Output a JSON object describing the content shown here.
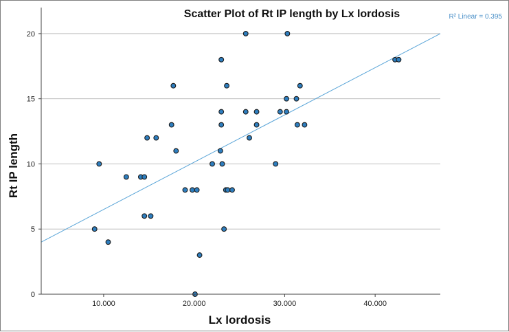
{
  "chart_data": {
    "type": "scatter",
    "title": "Scatter Plot of Rt IP length by Lx lordosis",
    "xlabel": "Lx lordosis",
    "ylabel": "Rt IP length",
    "xlim": [
      3.1,
      47.2
    ],
    "ylim": [
      0,
      22
    ],
    "x_ticks": [
      10,
      20,
      30,
      40
    ],
    "x_tick_labels": [
      "10.000",
      "20.000",
      "30.000",
      "40.000"
    ],
    "y_ticks": [
      0,
      5,
      10,
      15,
      20
    ],
    "y_tick_labels": [
      "0",
      "5",
      "10",
      "15",
      "20"
    ],
    "grid": "horizontal",
    "fit_line": {
      "label": "R² Linear = 0.395",
      "x": [
        3.1,
        47.2
      ],
      "y": [
        4.0,
        20.0
      ]
    },
    "points": [
      {
        "x": 25.7,
        "y": 20
      },
      {
        "x": 30.3,
        "y": 20
      },
      {
        "x": 23.0,
        "y": 18
      },
      {
        "x": 42.2,
        "y": 18
      },
      {
        "x": 42.6,
        "y": 18
      },
      {
        "x": 17.7,
        "y": 16
      },
      {
        "x": 23.6,
        "y": 16
      },
      {
        "x": 31.7,
        "y": 16
      },
      {
        "x": 30.2,
        "y": 15
      },
      {
        "x": 31.3,
        "y": 15
      },
      {
        "x": 23.0,
        "y": 14
      },
      {
        "x": 25.7,
        "y": 14
      },
      {
        "x": 26.9,
        "y": 14
      },
      {
        "x": 29.5,
        "y": 14
      },
      {
        "x": 30.2,
        "y": 14
      },
      {
        "x": 17.5,
        "y": 13
      },
      {
        "x": 23.0,
        "y": 13
      },
      {
        "x": 26.9,
        "y": 13
      },
      {
        "x": 31.4,
        "y": 13
      },
      {
        "x": 32.2,
        "y": 13
      },
      {
        "x": 14.8,
        "y": 12
      },
      {
        "x": 15.8,
        "y": 12
      },
      {
        "x": 26.1,
        "y": 12
      },
      {
        "x": 18.0,
        "y": 11
      },
      {
        "x": 22.9,
        "y": 11
      },
      {
        "x": 9.5,
        "y": 10
      },
      {
        "x": 22.0,
        "y": 10
      },
      {
        "x": 23.1,
        "y": 10
      },
      {
        "x": 29.0,
        "y": 10
      },
      {
        "x": 12.5,
        "y": 9
      },
      {
        "x": 14.1,
        "y": 9
      },
      {
        "x": 14.5,
        "y": 9
      },
      {
        "x": 19.0,
        "y": 8
      },
      {
        "x": 19.8,
        "y": 8
      },
      {
        "x": 20.3,
        "y": 8
      },
      {
        "x": 23.5,
        "y": 8
      },
      {
        "x": 23.7,
        "y": 8
      },
      {
        "x": 24.2,
        "y": 8
      },
      {
        "x": 14.5,
        "y": 6
      },
      {
        "x": 15.2,
        "y": 6
      },
      {
        "x": 9.0,
        "y": 5
      },
      {
        "x": 23.3,
        "y": 5
      },
      {
        "x": 10.5,
        "y": 4
      },
      {
        "x": 20.6,
        "y": 3
      },
      {
        "x": 20.1,
        "y": 0
      }
    ]
  }
}
